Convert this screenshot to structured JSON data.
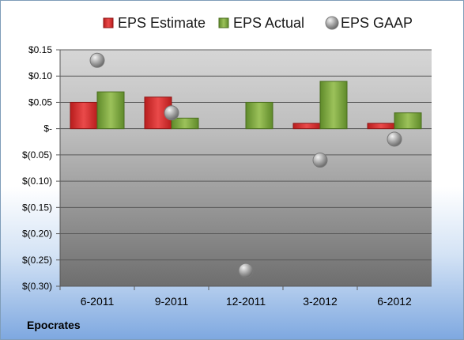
{
  "chart_data": {
    "type": "bar",
    "categories": [
      "6-2011",
      "9-2011",
      "12-2011",
      "3-2012",
      "6-2012"
    ],
    "series": [
      {
        "name": "EPS Estimate",
        "kind": "bar",
        "color": "#d42b2b",
        "values": [
          0.05,
          0.06,
          null,
          0.01,
          0.01
        ]
      },
      {
        "name": "EPS Actual",
        "kind": "bar",
        "color": "#7aa23a",
        "values": [
          0.07,
          0.02,
          0.05,
          0.09,
          0.03
        ]
      },
      {
        "name": "EPS GAAP",
        "kind": "marker",
        "color": "#a9a9a9",
        "values": [
          0.13,
          0.03,
          -0.27,
          -0.06,
          -0.02
        ]
      }
    ],
    "ylim": [
      -0.3,
      0.15
    ],
    "yticks": [
      0.15,
      0.1,
      0.05,
      0,
      -0.05,
      -0.1,
      -0.15,
      -0.2,
      -0.25,
      -0.3
    ],
    "ytick_labels": [
      "$0.15",
      "$0.10",
      "$0.05",
      "$-",
      "$(0.05)",
      "$(0.10)",
      "$(0.15)",
      "$(0.20)",
      "$(0.25)",
      "$(0.30)"
    ],
    "grid": true,
    "legend": "top"
  },
  "company_label": "Epocrates"
}
